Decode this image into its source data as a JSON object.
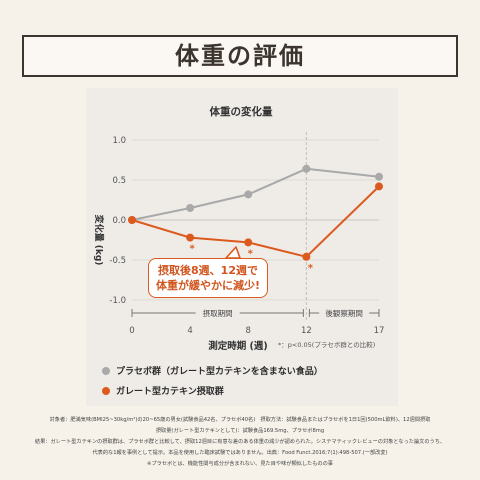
{
  "page": {
    "title": "体重の評価"
  },
  "chart_data": {
    "type": "line",
    "title": "体重の変化量",
    "ylabel": "変化量 (kg)",
    "xlabel": "測定時期 (週)",
    "x": [
      0,
      4,
      8,
      12,
      17
    ],
    "xticks": [
      "0",
      "4",
      "8",
      "12",
      "17"
    ],
    "yticks": [
      "1.0",
      "0.5",
      "0.0",
      "-0.5",
      "-1.0"
    ],
    "ylim": [
      -1.0,
      1.0
    ],
    "grid": true,
    "series": [
      {
        "name": "プラセボ群（ガレート型カテキンを含まない食品）",
        "color": "#a9a9a9",
        "values": [
          0.0,
          0.15,
          0.32,
          0.64,
          0.54
        ]
      },
      {
        "name": "ガレート型カテキン摂取群",
        "color": "#dd5a1f",
        "values": [
          0.0,
          -0.22,
          -0.28,
          -0.46,
          0.42
        ]
      }
    ],
    "period_labels": [
      "摂取期間",
      "後観察期間"
    ],
    "significance_marks": [
      "*",
      "*",
      "*"
    ],
    "significance_note": "*：p<0.05(プラセボ群との比較)",
    "callout": [
      "摂取後8週、12週で",
      "体重が緩やかに減少!"
    ]
  },
  "footnotes": [
    "対象者：肥満気味(BMI25~30kg/m²)の20~65歳の男女(試験食品42名、プラセボ40名)　摂取方法：試験食品またはプラセボを1日1回(500mL飲料)、12週間摂取",
    "摂取量(ガレート型カテキンとして)：試験食品169.5mg、プラセボ8mg",
    "結果：ガレート型カテキンの摂取群は、プラセボ群と比較して、摂取12週目に有意な差のある体重の減少が認められた。システマティックレビューの対象となった論文のうち、",
    "代表的な1報を事例として提示。本品を使用した臨床試験ではありません。出典：Food Funct.2016;7(1):498-507.(一部改変)",
    "※プラセボとは、機能性関与成分が含まれない、見た目や味が類似したものの事"
  ]
}
